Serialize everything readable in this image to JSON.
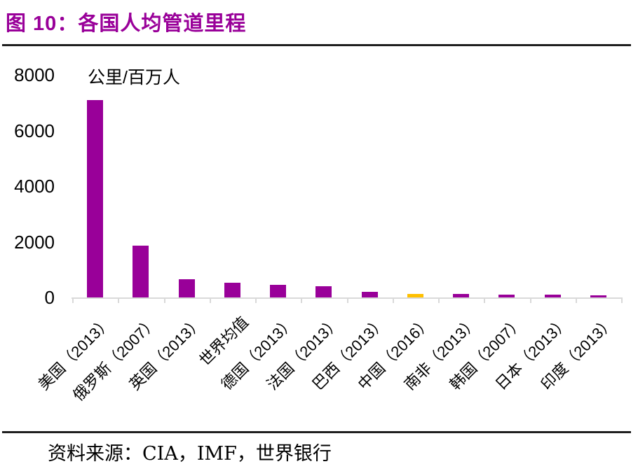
{
  "figure": {
    "title": "图 10：各国人均管道里程",
    "source": "资料来源：CIA，IMF，世界银行"
  },
  "colors": {
    "title_text": "#990099",
    "bar_default": "#990099",
    "bar_highlight": "#FFC000",
    "axis_line": "#d9d9d9",
    "label_text": "#000000",
    "rule": "#1f1f1f"
  },
  "chart_data": {
    "type": "bar",
    "title": "图 10：各国人均管道里程",
    "unit_label": "公里/百万人",
    "categories": [
      "美国（2013）",
      "俄罗斯（2007）",
      "英国（2013）",
      "世界均值",
      "德国（2013）",
      "法国（2013）",
      "巴西（2013）",
      "中国（2016）",
      "南非（2013）",
      "韩国（2007）",
      "日本（2013）",
      "印度（2013）"
    ],
    "values": [
      7100,
      1850,
      660,
      540,
      450,
      400,
      200,
      120,
      115,
      105,
      95,
      85
    ],
    "bar_colors": [
      "#990099",
      "#990099",
      "#990099",
      "#990099",
      "#990099",
      "#990099",
      "#990099",
      "#FFC000",
      "#990099",
      "#990099",
      "#990099",
      "#990099"
    ],
    "highlight_index": 7,
    "xlabel": "",
    "ylabel": "公里/百万人",
    "ylim": [
      0,
      8000
    ],
    "yticks": [
      0,
      2000,
      4000,
      6000,
      8000
    ],
    "grid": false,
    "legend": null
  }
}
